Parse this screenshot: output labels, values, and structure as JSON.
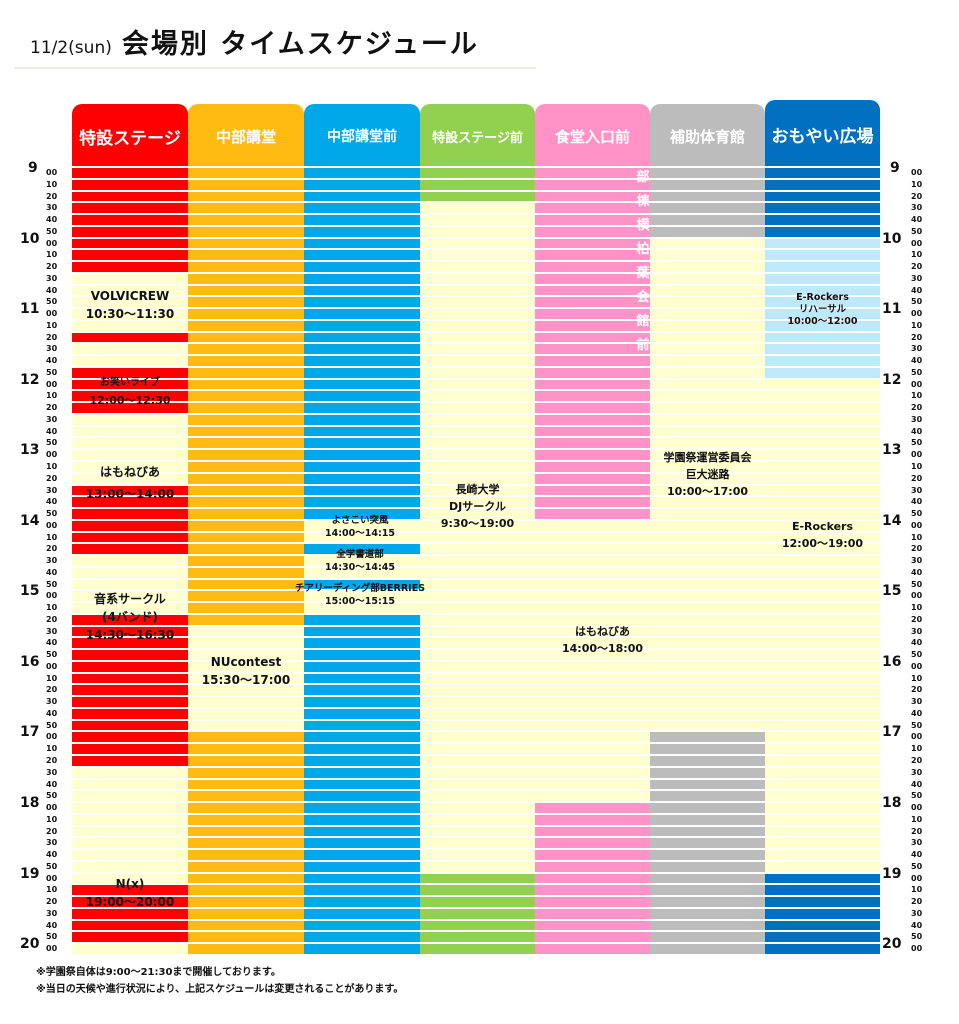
{
  "header": {
    "date": "11/2(sun)",
    "title": "会場別 タイムスケジュール"
  },
  "colors": {
    "red": "#ff0000",
    "orange": "#ffbb11",
    "blue": "#00a8ea",
    "green": "#92d050",
    "pink": "#ff93c8",
    "gray": "#bcbcbc",
    "navy": "#0070c0",
    "lightblue": "#bde9fb",
    "cream": "#ffffd0"
  },
  "time_axis": {
    "start": "9:00",
    "end": "20:00",
    "interval_minutes": 10,
    "hours": [
      "9",
      "10",
      "11",
      "12",
      "13",
      "14",
      "15",
      "16",
      "17",
      "18",
      "19",
      "20"
    ],
    "minutes": [
      "00",
      "10",
      "20",
      "30",
      "40",
      "50"
    ]
  },
  "venues": [
    {
      "name": "特設ステージ",
      "color": "red",
      "free": [
        [
          9,
          14
        ],
        [
          15,
          17
        ],
        [
          21,
          27
        ],
        [
          33,
          38
        ],
        [
          51,
          61
        ],
        [
          66,
          67
        ]
      ],
      "events": [
        {
          "name": "VOLVICREW",
          "time": "10:30～11:30"
        },
        {
          "name": "お笑いライブ",
          "time": "12:00～12:30"
        },
        {
          "name": "はもねびあ",
          "time": "13:00～14:00"
        },
        {
          "name": "音系サークル",
          "sub": "(4バンド)",
          "time": "14:30～16:30"
        },
        {
          "name": "N(x)",
          "time": "19:00～20:00"
        }
      ]
    },
    {
      "name": "中部講堂",
      "color": "orange",
      "free": [
        [
          39,
          48
        ]
      ],
      "events": [
        {
          "name": "NUcontest",
          "time": "15:30～17:00"
        }
      ]
    },
    {
      "name": "中部講堂前",
      "color": "blue",
      "free": [
        [
          30,
          32
        ],
        [
          33,
          35
        ],
        [
          36,
          38
        ]
      ],
      "events": [
        {
          "name": "よさこい突風",
          "time": "14:00～14:15"
        },
        {
          "name": "全学書道部",
          "time": "14:30～14:45"
        },
        {
          "name": "チアリーディング部BERRIES",
          "time": "15:00～15:15"
        }
      ]
    },
    {
      "name": "特設ステージ前",
      "color": "green",
      "free": [
        [
          3,
          60
        ]
      ],
      "events": [
        {
          "name": "長崎大学",
          "sub": "DJサークル",
          "time": "9:30～19:00"
        }
      ]
    },
    {
      "name": "食堂入口前",
      "color": "pink",
      "free": [
        [
          30,
          54
        ]
      ],
      "note_vertical": "部棟横柏葉会館前",
      "events": [
        {
          "name": "はもねびあ",
          "time": "14:00～18:00"
        }
      ]
    },
    {
      "name": "補助体育館",
      "color": "gray",
      "free": [
        [
          6,
          48
        ]
      ],
      "events": [
        {
          "name": "学園祭運営委員会",
          "sub": "巨大迷路",
          "time": "10:00～17:00"
        }
      ]
    },
    {
      "name": "おもやい広場",
      "color": "navy",
      "free": [
        [
          18,
          60
        ]
      ],
      "light": [
        [
          6,
          18
        ]
      ],
      "events": [
        {
          "name": "E-Rockers",
          "sub": "リハーサル",
          "time": "10:00～12:00"
        },
        {
          "name": "E-Rockers",
          "time": "12:00～19:00"
        }
      ]
    }
  ],
  "footnotes": [
    "※学園祭自体は9:00～21:30まで開催しております。",
    "※当日の天候や進行状況により、上記スケジュールは変更されることがあります。"
  ]
}
